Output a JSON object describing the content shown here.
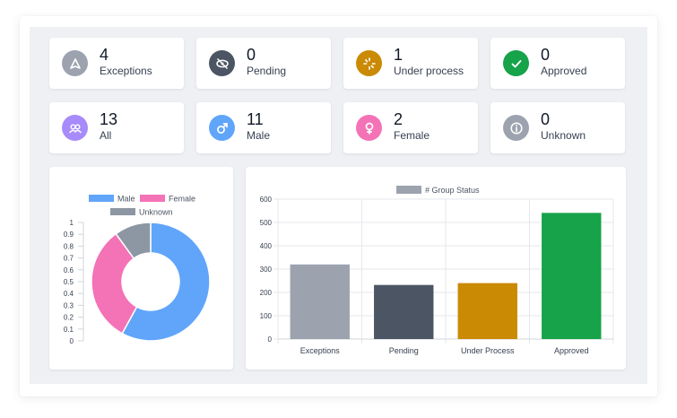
{
  "stats": [
    {
      "value": "4",
      "label": "Exceptions",
      "icon": "triangle-alert-icon",
      "color": "#9ca3af"
    },
    {
      "value": "0",
      "label": "Pending",
      "icon": "eye-off-icon",
      "color": "#4b5563"
    },
    {
      "value": "1",
      "label": "Under process",
      "icon": "loader-icon",
      "color": "#ca8a04"
    },
    {
      "value": "0",
      "label": "Approved",
      "icon": "check-icon",
      "color": "#16a34a"
    },
    {
      "value": "13",
      "label": "All",
      "icon": "users-icon",
      "color": "#a78bfa"
    },
    {
      "value": "11",
      "label": "Male",
      "icon": "male-icon",
      "color": "#60a5fa"
    },
    {
      "value": "2",
      "label": "Female",
      "icon": "female-icon",
      "color": "#f472b6"
    },
    {
      "value": "0",
      "label": "Unknown",
      "icon": "info-icon",
      "color": "#9ca3af"
    }
  ],
  "chart_data": [
    {
      "type": "pie",
      "variant": "doughnut",
      "categories": [
        "Male",
        "Female",
        "Unknown"
      ],
      "values": [
        0.58,
        0.32,
        0.1
      ],
      "colors": [
        "#60a5fa",
        "#f472b6",
        "#8d96a3"
      ],
      "y_ticks": [
        "1",
        "0.9",
        "0.8",
        "0.7",
        "0.6",
        "0.5",
        "0.4",
        "0.3",
        "0.2",
        "0.1",
        "0"
      ],
      "legend": "top"
    },
    {
      "type": "bar",
      "categories": [
        "Exceptions",
        "Pending",
        "Under Process",
        "Approved"
      ],
      "series": [
        {
          "name": "# Group Status",
          "values": [
            320,
            232,
            240,
            541
          ]
        }
      ],
      "colors": [
        "#9ca3af",
        "#4b5563",
        "#ca8a04",
        "#16a34a"
      ],
      "legend_color": "#9ca3af",
      "ylim": [
        0,
        600
      ],
      "y_ticks": [
        "600",
        "500",
        "400",
        "300",
        "200",
        "100",
        "0"
      ],
      "grid": true,
      "legend": "top"
    }
  ]
}
